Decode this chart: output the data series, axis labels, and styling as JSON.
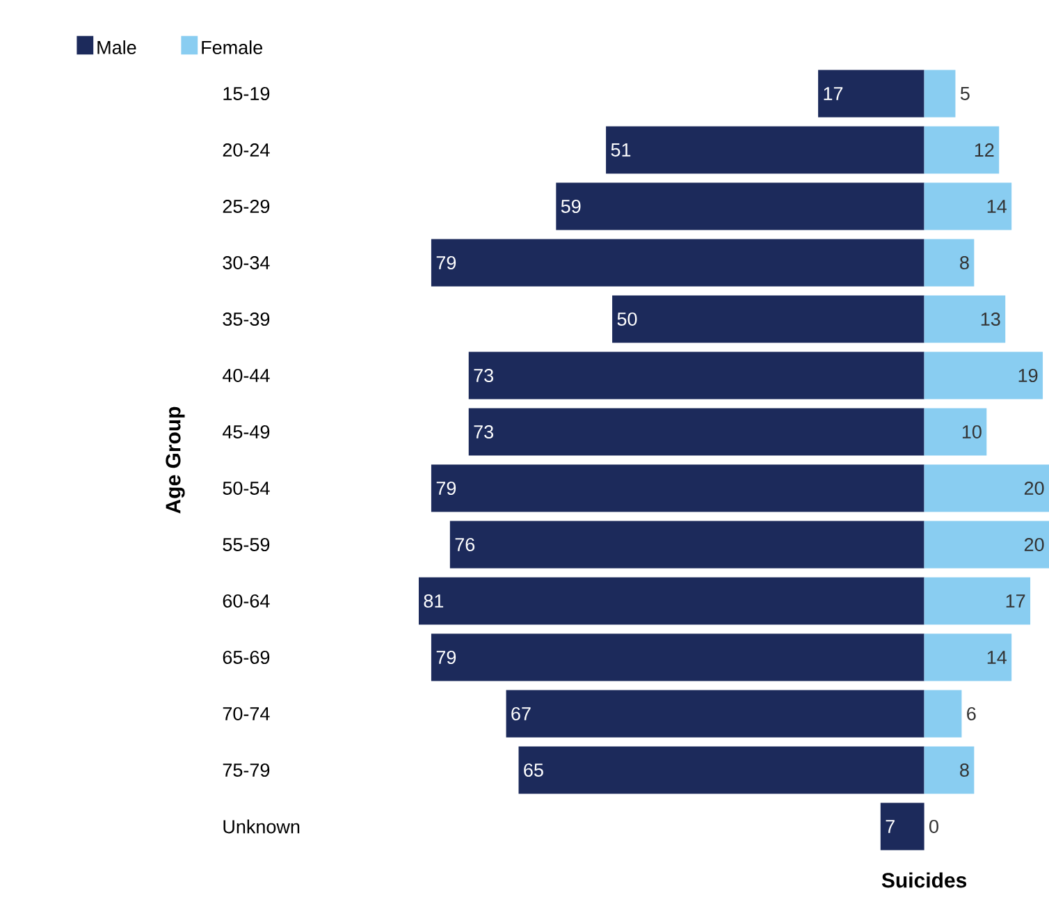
{
  "chart_data": [
    {
      "type": "bar",
      "orientation": "horizontal",
      "ylabel": "Age Group",
      "legend": "top left",
      "tick_labels": "y",
      "xlim": [
        81,
        0
      ],
      "data_labels": true,
      "categories": [
        "15-19",
        "20-24",
        "25-29",
        "30-34",
        "35-39",
        "40-44",
        "45-49",
        "50-54",
        "55-59",
        "60-64",
        "65-69",
        "70-74",
        "75-79",
        "Unknown"
      ],
      "series": [
        {
          "name": "Male",
          "color": "#1c2a5b",
          "values": [
            17,
            51,
            59,
            79,
            50,
            73,
            73,
            79,
            76,
            81,
            79,
            67,
            65,
            7
          ]
        }
      ]
    },
    {
      "type": "bar",
      "orientation": "horizontal",
      "xlabel": "Suicides",
      "legend": "top left",
      "tick_labels": false,
      "xlim": [
        0,
        20
      ],
      "data_labels": true,
      "categories": [
        null,
        null,
        null,
        null,
        null,
        null,
        null,
        null,
        null,
        null,
        null,
        null,
        null,
        null
      ],
      "series": [
        {
          "name": "Female",
          "color": "#89cdf1",
          "values": [
            5,
            12,
            14,
            8,
            13,
            19,
            10,
            20,
            20,
            17,
            14,
            6,
            8,
            0
          ]
        }
      ]
    }
  ]
}
